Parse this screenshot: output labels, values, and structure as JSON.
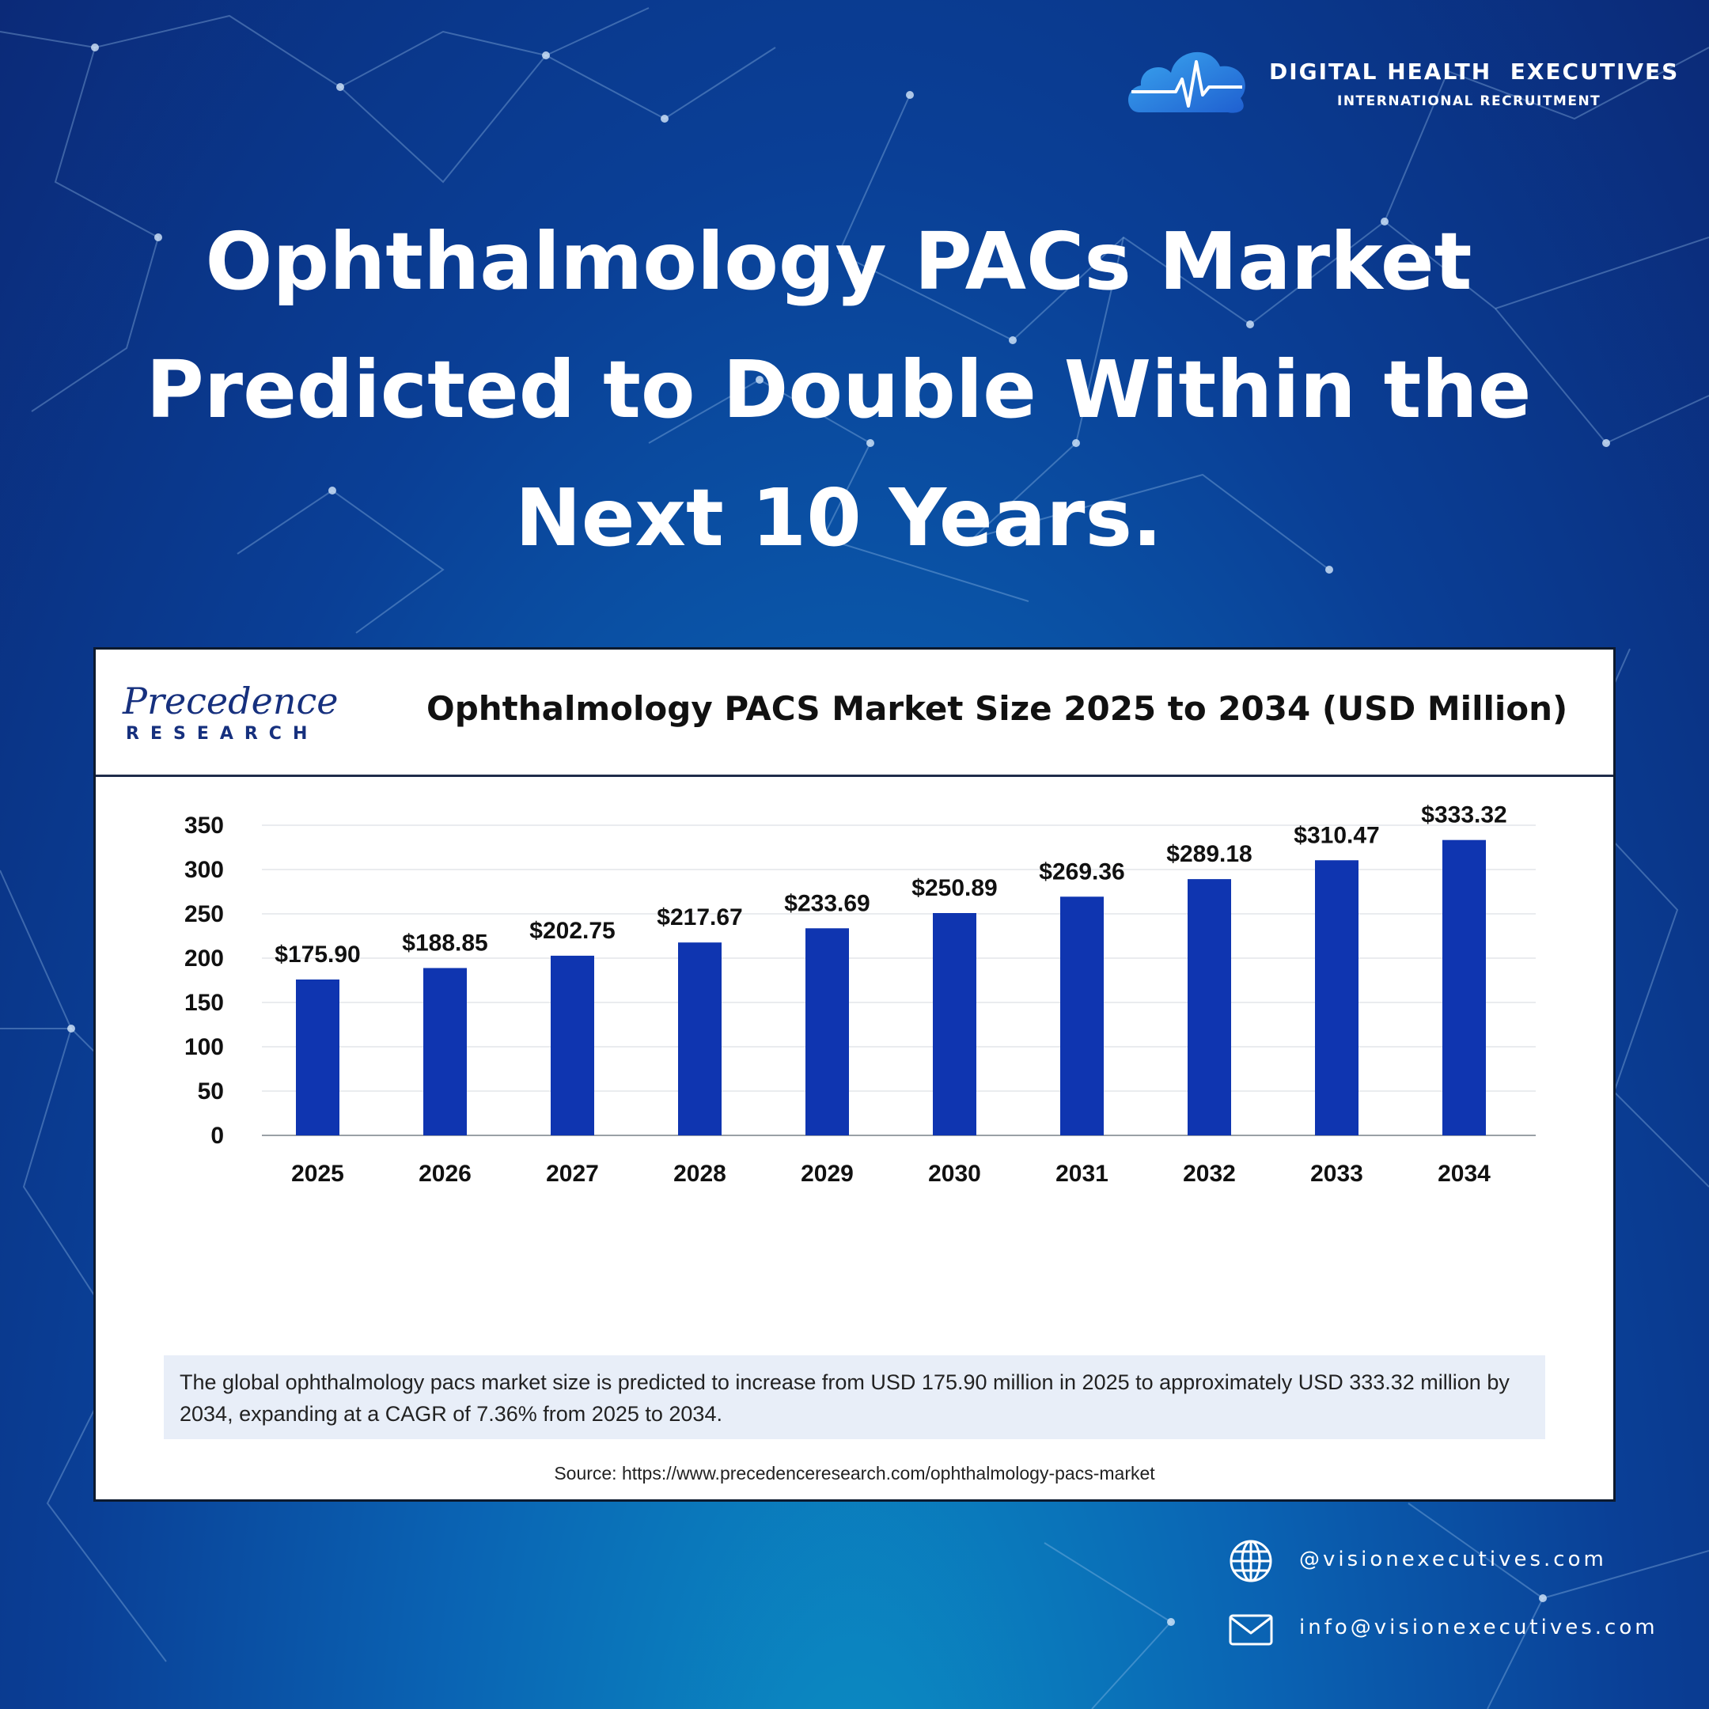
{
  "brand": {
    "name": "DIGITAL HEALTH  EXECUTIVES",
    "subtitle": "INTERNATIONAL RECRUITMENT"
  },
  "headline": {
    "lines": [
      "Ophthalmology PACs Market",
      "Predicted to Double Within the",
      "Next 10 Years."
    ]
  },
  "card": {
    "logo_top": "Precedence",
    "logo_bottom": "RESEARCH",
    "note": "The global ophthalmology pacs market size is predicted to increase from USD 175.90 million in 2025 to approximately USD 333.32 million by 2034, expanding at a CAGR of 7.36% from 2025 to 2034.",
    "source": "Source: https://www.precedenceresearch.com/ophthalmology-pacs-market"
  },
  "chart_data": {
    "type": "bar",
    "title": "Ophthalmology PACS Market Size 2025 to 2034 (USD Million)",
    "categories": [
      "2025",
      "2026",
      "2027",
      "2028",
      "2029",
      "2030",
      "2031",
      "2032",
      "2033",
      "2034"
    ],
    "values": [
      175.9,
      188.85,
      202.75,
      217.67,
      233.69,
      250.89,
      269.36,
      289.18,
      310.47,
      333.32
    ],
    "data_labels": [
      "$175.90",
      "$188.85",
      "$202.75",
      "$217.67",
      "$233.69",
      "$250.89",
      "$269.36",
      "$289.18",
      "$310.47",
      "$333.32"
    ],
    "yticks": [
      0,
      50,
      100,
      150,
      200,
      250,
      300,
      350
    ],
    "ylim": [
      0,
      350
    ],
    "xlabel": "",
    "ylabel": "",
    "grid": true,
    "bar_color": "#0f35b0"
  },
  "contacts": {
    "website": "@visionexecutives.com",
    "email": "info@visionexecutives.com",
    "website_icon": "globe-icon",
    "email_icon": "envelope-icon"
  }
}
